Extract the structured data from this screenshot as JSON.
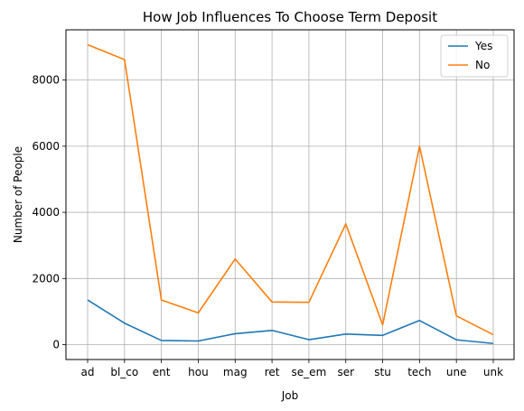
{
  "chart_data": {
    "type": "line",
    "title": "How Job Influences To Choose Term Deposit",
    "xlabel": "Job",
    "ylabel": "Number of People",
    "categories": [
      "ad",
      "bl_co",
      "ent",
      "hou",
      "mag",
      "ret",
      "se_em",
      "ser",
      "stu",
      "tech",
      "une",
      "unk"
    ],
    "series": [
      {
        "name": "Yes",
        "color": "#1f77b4",
        "values": [
          1350,
          650,
          125,
          110,
          330,
          430,
          150,
          320,
          280,
          730,
          145,
          35
        ]
      },
      {
        "name": "No",
        "color": "#ff7f0e",
        "values": [
          9070,
          8620,
          1350,
          960,
          2590,
          1290,
          1280,
          3650,
          600,
          6000,
          870,
          300
        ]
      }
    ],
    "ylim": [
      -450,
      9520
    ],
    "yticks": [
      0,
      2000,
      4000,
      6000,
      8000
    ],
    "grid": true,
    "legend": "top-right"
  }
}
